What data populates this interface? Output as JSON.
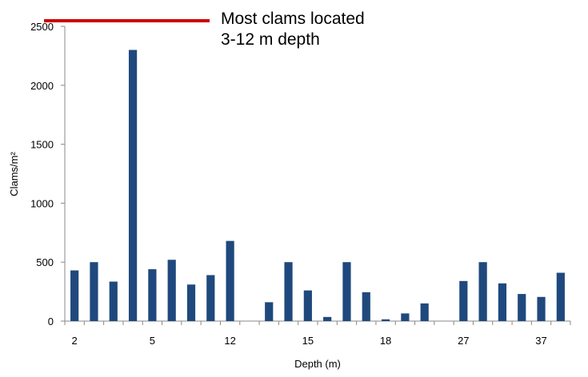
{
  "chart_data": {
    "type": "bar",
    "title": "",
    "xlabel": "Depth (m)",
    "ylabel": "Clams/m²",
    "ylim": [
      0,
      2500
    ],
    "yticks": [
      "0",
      "500",
      "1000",
      "1500",
      "2000",
      "2500"
    ],
    "x_tick_labels": [
      "2",
      "5",
      "12",
      "15",
      "18",
      "27",
      "37"
    ],
    "grid": false,
    "legend": "none",
    "bar_color": "#1f497d",
    "values": [
      430,
      500,
      335,
      2300,
      440,
      520,
      310,
      390,
      680,
      0,
      160,
      500,
      260,
      35,
      500,
      245,
      15,
      65,
      150,
      0,
      340,
      500,
      320,
      230,
      205,
      410
    ],
    "annotation": {
      "line1": "Most clams located",
      "line2": "3-12 m depth",
      "line_color": "#cc0000"
    }
  }
}
